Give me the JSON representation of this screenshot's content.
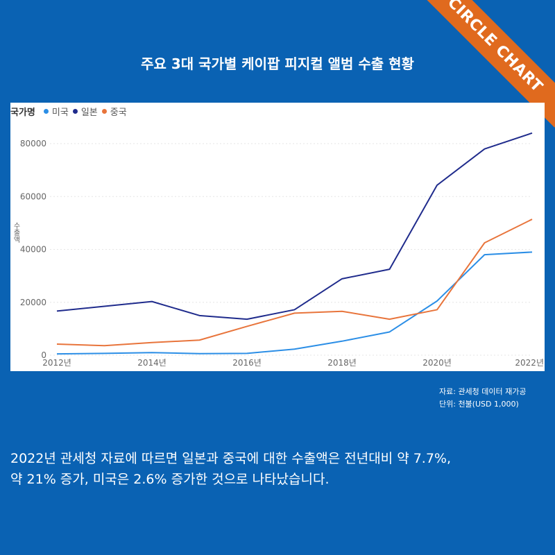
{
  "badge": "CIRCLE CHART",
  "title": "주요 3대 국가별 케이팝 피지컬 앨범 수출 현황",
  "source_line1": "자료: 관세청 데이터 재가공",
  "source_line2": "단위: 천불(USD 1,000)",
  "description_line1": "2022년 관세청 자료에 따르면  일본과 중국에 대한 수출액은 전년대비 약 7.7%,",
  "description_line2": "약 21% 증가,  미국은 2.6% 증가한 것으로 나타났습니다.",
  "colors": {
    "background": "#0a62b3",
    "badge": "#e06a1e",
    "usa": "#2b8ee6",
    "japan": "#1f2b8c",
    "china": "#e8743b"
  },
  "chart_data": {
    "type": "line",
    "legend_title": "국가명",
    "ylabel": "수출액",
    "x": [
      2012,
      2013,
      2014,
      2015,
      2016,
      2017,
      2018,
      2019,
      2020,
      2021,
      2022
    ],
    "xtick_labels": [
      "2012년",
      "2014년",
      "2016년",
      "2018년",
      "2020년",
      "2022년"
    ],
    "xtick_values": [
      2012,
      2014,
      2016,
      2018,
      2020,
      2022
    ],
    "yticks": [
      "0",
      "20000",
      "40000",
      "60000",
      "80000"
    ],
    "ylim": [
      0,
      85000
    ],
    "grid": true,
    "series": [
      {
        "name": "미국",
        "color": "#2b8ee6",
        "values": [
          500,
          700,
          1000,
          600,
          700,
          2300,
          5300,
          8800,
          20500,
          38000,
          39000
        ]
      },
      {
        "name": "일본",
        "color": "#1f2b8c",
        "values": [
          16700,
          18500,
          20300,
          15000,
          13600,
          17200,
          28900,
          32500,
          64300,
          78000,
          84000
        ]
      },
      {
        "name": "중국",
        "color": "#e8743b",
        "values": [
          4200,
          3600,
          4800,
          5700,
          10900,
          15900,
          16600,
          13600,
          17200,
          42500,
          51400
        ]
      }
    ]
  }
}
